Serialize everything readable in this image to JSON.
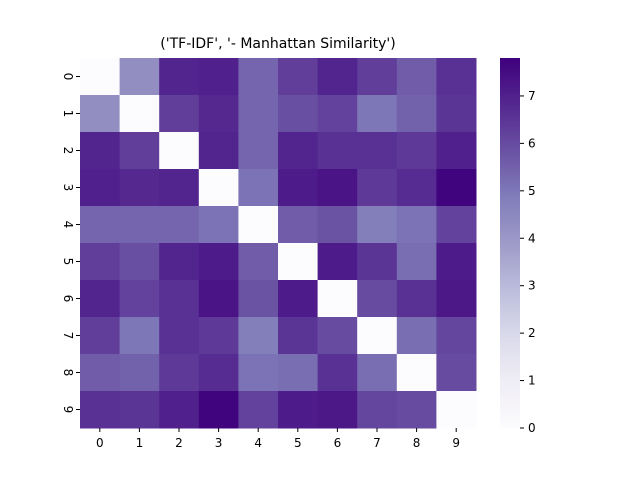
{
  "chart_data": {
    "type": "heatmap",
    "title": "('TF-IDF', '- Manhattan Similarity')",
    "xlabel": "",
    "ylabel": "",
    "x_categories": [
      "0",
      "1",
      "2",
      "3",
      "4",
      "5",
      "6",
      "7",
      "8",
      "9"
    ],
    "y_categories": [
      "0",
      "1",
      "2",
      "3",
      "4",
      "5",
      "6",
      "7",
      "8",
      "9"
    ],
    "values": [
      [
        0.0,
        4.3,
        6.9,
        7.0,
        5.4,
        6.3,
        6.9,
        6.3,
        5.6,
        6.6
      ],
      [
        4.3,
        0.0,
        6.3,
        6.8,
        5.4,
        5.9,
        6.2,
        5.0,
        5.5,
        6.5
      ],
      [
        6.9,
        6.3,
        0.0,
        6.9,
        5.4,
        6.9,
        6.6,
        6.6,
        6.4,
        7.0
      ],
      [
        7.0,
        6.8,
        6.9,
        0.0,
        5.1,
        7.1,
        7.3,
        6.4,
        6.7,
        7.7
      ],
      [
        5.4,
        5.4,
        5.4,
        5.1,
        0.0,
        5.6,
        5.8,
        4.8,
        5.1,
        6.2
      ],
      [
        6.3,
        5.9,
        6.9,
        7.1,
        5.6,
        0.0,
        7.1,
        6.5,
        5.2,
        7.1
      ],
      [
        6.9,
        6.2,
        6.6,
        7.3,
        5.8,
        7.1,
        0.0,
        6.0,
        6.6,
        7.2
      ],
      [
        6.3,
        5.0,
        6.6,
        6.4,
        4.8,
        6.5,
        6.0,
        0.0,
        5.2,
        6.1
      ],
      [
        5.6,
        5.5,
        6.4,
        6.7,
        5.1,
        5.2,
        6.6,
        5.2,
        0.0,
        6.0
      ],
      [
        6.6,
        6.5,
        7.0,
        7.7,
        6.2,
        7.1,
        7.2,
        6.1,
        6.0,
        0.0
      ]
    ],
    "vmin": 0,
    "vmax": 7.8,
    "colormap": "Purples",
    "colorbar_ticks": [
      0,
      1,
      2,
      3,
      4,
      5,
      6,
      7
    ],
    "grid": false
  }
}
